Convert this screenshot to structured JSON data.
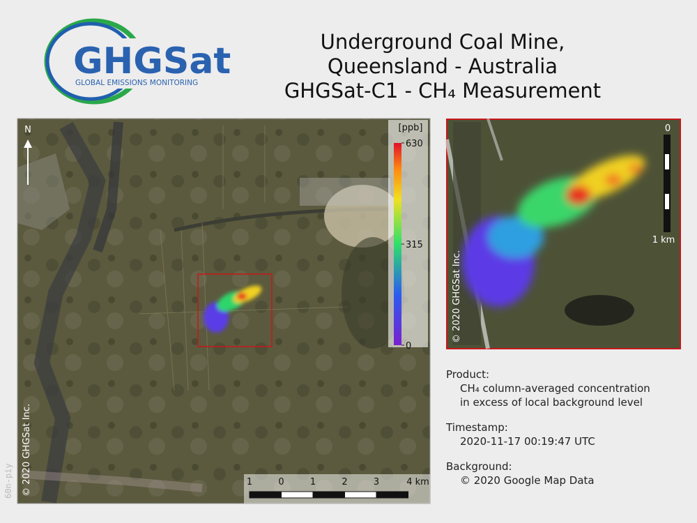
{
  "logo": {
    "name": "GHGSat",
    "tagline": "GLOBAL EMISSIONS MONITORING"
  },
  "title": [
    "Underground Coal Mine,",
    "Queensland - Australia",
    "GHGSat-C1 - CH₄ Measurement"
  ],
  "map": {
    "north": "N",
    "copyright": "© 2020 GHGSat Inc.",
    "watermark": "60n-piy",
    "scale_labels": [
      "1",
      "0",
      "1",
      "2",
      "3",
      "4 km"
    ]
  },
  "colorbar": {
    "unit": "[ppb]",
    "range": [
      0,
      630
    ],
    "ticks": [
      0,
      315,
      630
    ]
  },
  "inset": {
    "scale_top": "0",
    "scale_bottom": "1 km",
    "copyright": "© 2020 GHGSat Inc."
  },
  "info": [
    {
      "label": "Product:",
      "lines": [
        "CH₄ column-averaged concentration",
        "in excess of local background level"
      ]
    },
    {
      "label": "Timestamp:",
      "lines": [
        "2020-11-17 00:19:47 UTC"
      ]
    },
    {
      "label": "Background:",
      "lines": [
        "© 2020 Google Map Data"
      ]
    }
  ]
}
